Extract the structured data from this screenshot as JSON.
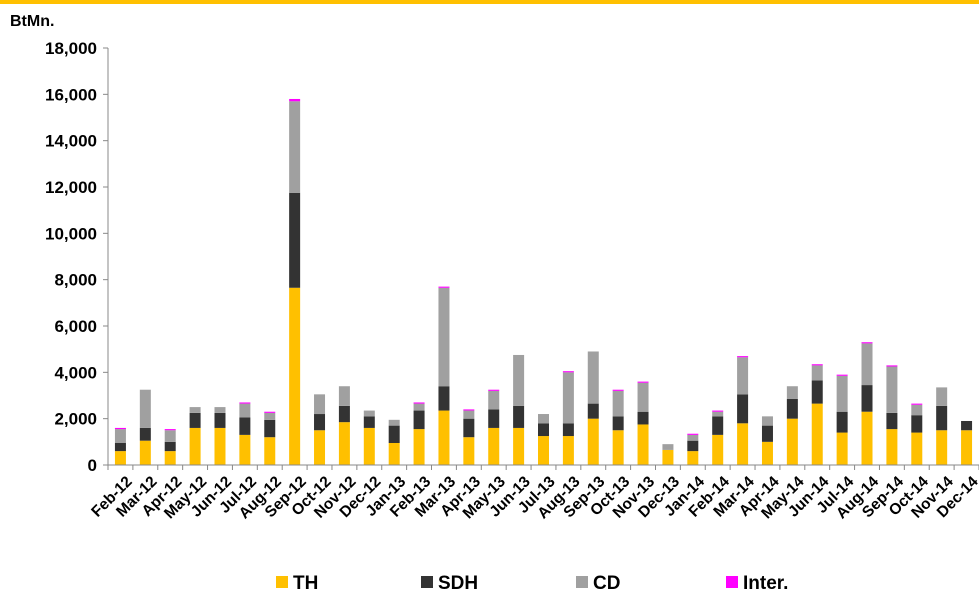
{
  "chart_data": {
    "type": "bar",
    "stacked": true,
    "ylabel": "BtMn.",
    "ylim": [
      0,
      18000
    ],
    "yticks": [
      "0",
      "2,000",
      "4,000",
      "6,000",
      "8,000",
      "10,000",
      "12,000",
      "14,000",
      "16,000",
      "18,000"
    ],
    "grid": false,
    "legend_position": "bottom",
    "categories": [
      "Feb-12",
      "Mar-12",
      "Apr-12",
      "May-12",
      "Jun-12",
      "Jul-12",
      "Aug-12",
      "Sep-12",
      "Oct-12",
      "Nov-12",
      "Dec-12",
      "Jan-13",
      "Feb-13",
      "Mar-13",
      "Apr-13",
      "May-13",
      "Jun-13",
      "Jul-13",
      "Aug-13",
      "Sep-13",
      "Oct-13",
      "Nov-13",
      "Dec-13",
      "Jan-14",
      "Feb-14",
      "Mar-14",
      "Apr-14",
      "May-14",
      "Jun-14",
      "Jul-14",
      "Aug-14",
      "Sep-14",
      "Oct-14",
      "Nov-14",
      "Dec-14"
    ],
    "series": [
      {
        "name": "TH",
        "color": "#FFC000",
        "values": [
          600,
          1050,
          600,
          1600,
          1600,
          1300,
          1200,
          7650,
          1500,
          1850,
          1600,
          950,
          1550,
          2350,
          1200,
          1600,
          1600,
          1250,
          1250,
          2000,
          1500,
          1750,
          650,
          600,
          1300,
          1800,
          1000,
          2000,
          2650,
          1400,
          2300,
          1550,
          1400,
          1500,
          1500
        ]
      },
      {
        "name": "SDH",
        "color": "#333333",
        "values": [
          350,
          550,
          400,
          650,
          650,
          750,
          750,
          4100,
          700,
          700,
          500,
          750,
          800,
          1050,
          800,
          800,
          950,
          550,
          550,
          650,
          600,
          550,
          0,
          450,
          800,
          1250,
          700,
          850,
          1000,
          900,
          1150,
          700,
          750,
          1050,
          400
        ]
      },
      {
        "name": "CD",
        "color": "#A0A0A0",
        "values": [
          600,
          1650,
          500,
          250,
          250,
          600,
          300,
          3950,
          850,
          850,
          250,
          250,
          300,
          4250,
          350,
          800,
          2200,
          400,
          2200,
          2250,
          1100,
          1250,
          250,
          250,
          200,
          1600,
          400,
          550,
          650,
          1550,
          1800,
          2000,
          450,
          800,
          0
        ]
      },
      {
        "name": "Inter.",
        "color": "#FF00FF",
        "values": [
          50,
          0,
          50,
          0,
          0,
          50,
          50,
          100,
          0,
          0,
          0,
          0,
          50,
          50,
          50,
          50,
          0,
          0,
          50,
          0,
          50,
          50,
          0,
          50,
          50,
          50,
          0,
          0,
          50,
          50,
          50,
          50,
          50,
          0,
          0
        ]
      }
    ]
  }
}
